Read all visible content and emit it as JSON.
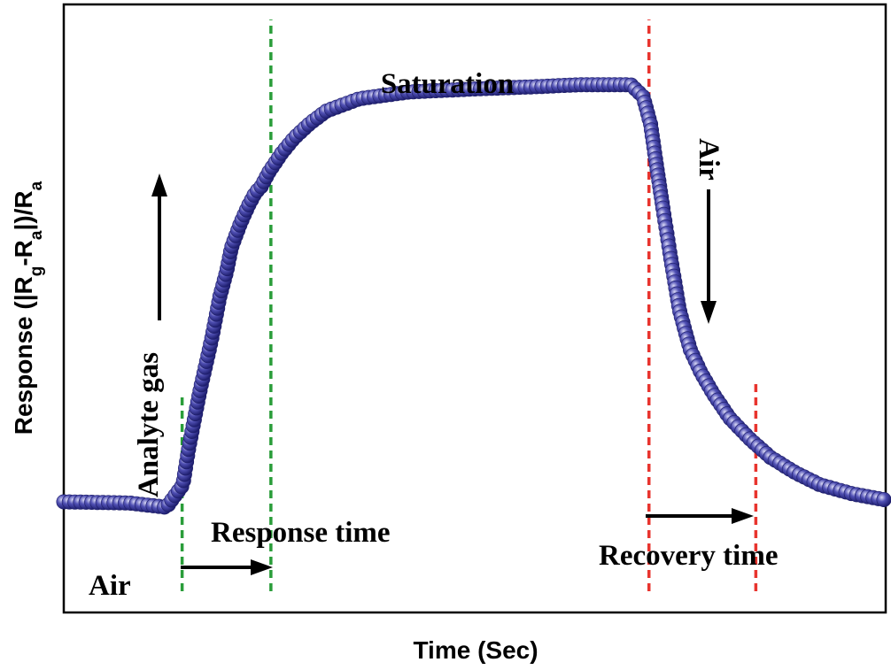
{
  "chart_data": {
    "type": "scatter",
    "title": "",
    "xlabel": "Time (Sec)",
    "ylabel": {
      "prefix": "Response (|R",
      "sub1": "g",
      "mid": "-R",
      "sub2": "a",
      "suffix": "|)/R",
      "sub3": "a"
    },
    "xlim": [
      0,
      100
    ],
    "ylim": [
      0,
      100
    ],
    "ticks": "none",
    "grid": false,
    "series": [
      {
        "name": "Response",
        "color": "#2e2e8f",
        "key_points": [
          [
            0,
            18.2
          ],
          [
            8,
            18.0
          ],
          [
            12.5,
            17.3
          ],
          [
            14.5,
            21
          ],
          [
            15.2,
            27
          ],
          [
            16.5,
            36
          ],
          [
            18,
            45
          ],
          [
            19,
            52
          ],
          [
            19.8,
            56
          ],
          [
            20.4,
            60
          ],
          [
            21.5,
            64
          ],
          [
            22.5,
            67
          ],
          [
            23.3,
            69
          ],
          [
            24,
            70
          ],
          [
            25,
            72.5
          ],
          [
            26.5,
            75.5
          ],
          [
            28,
            78
          ],
          [
            30,
            80.5
          ],
          [
            32,
            82.5
          ],
          [
            36,
            84.5
          ],
          [
            42,
            85.6
          ],
          [
            50,
            86.1
          ],
          [
            58,
            86.5
          ],
          [
            63,
            86.8
          ],
          [
            69,
            86.8
          ],
          [
            70.5,
            84.8
          ],
          [
            71.4,
            80.3
          ],
          [
            72,
            74.6
          ],
          [
            72.9,
            66.5
          ],
          [
            73.8,
            58.7
          ],
          [
            74.9,
            49.8
          ],
          [
            76.2,
            43.3
          ],
          [
            77.5,
            39.5
          ],
          [
            79,
            36
          ],
          [
            81,
            32
          ],
          [
            83.5,
            28.5
          ],
          [
            86,
            25.5
          ],
          [
            89,
            23
          ],
          [
            92,
            21
          ],
          [
            96,
            19.5
          ],
          [
            100,
            18.5
          ]
        ]
      }
    ],
    "markers": [
      {
        "type": "vline",
        "x": 14.4,
        "y_from": 3.5,
        "y_to": 36,
        "color": "#2a9d3a"
      },
      {
        "type": "vline",
        "x": 25.2,
        "y_from": 3.5,
        "y_to": 97.5,
        "color": "#2a9d3a"
      },
      {
        "type": "vline",
        "x": 71.2,
        "y_from": 3.5,
        "y_to": 97.5,
        "color": "#e8342e"
      },
      {
        "type": "vline",
        "x": 84.2,
        "y_from": 3.5,
        "y_to": 38,
        "color": "#e8342e"
      }
    ],
    "annotations": [
      {
        "text": "Saturation"
      },
      {
        "text": "Air",
        "position": "bottom-left"
      },
      {
        "text": "Analyte gas",
        "rotation": -90
      },
      {
        "text": "Air",
        "rotation": 90
      },
      {
        "text": "Response time"
      },
      {
        "text": "Recovery time"
      }
    ],
    "arrows": [
      {
        "direction": "up",
        "meaning": "analyte gas exposure"
      },
      {
        "direction": "down",
        "meaning": "air exposure"
      },
      {
        "direction": "right",
        "meaning": "response time span"
      },
      {
        "direction": "right",
        "meaning": "recovery time span"
      }
    ]
  }
}
